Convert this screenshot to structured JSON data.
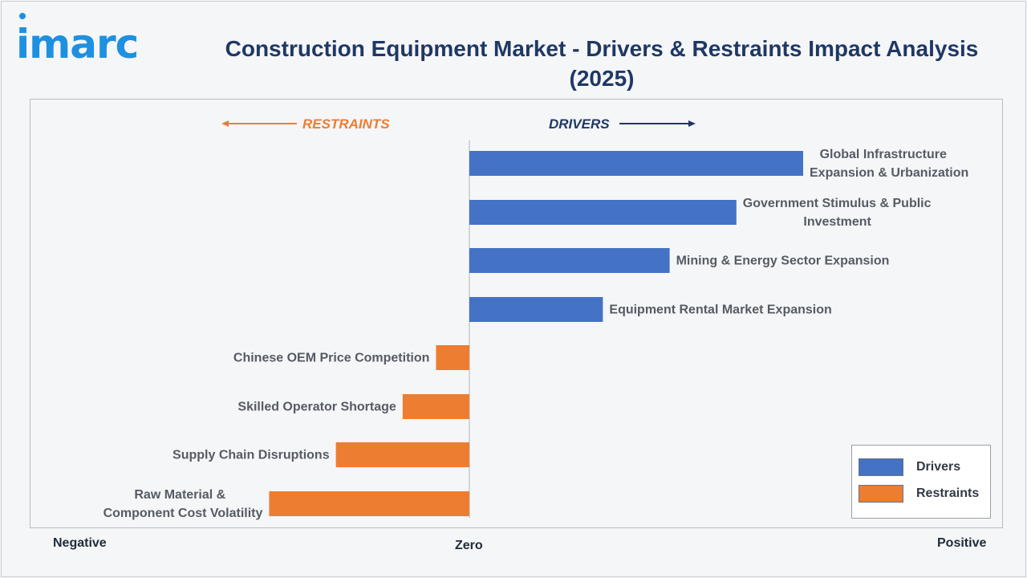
{
  "brand": {
    "logo_text": "imarc"
  },
  "title": "Construction Equipment Market - Drivers & Restraints Impact Analysis (2025)",
  "colors": {
    "drivers": "#4472c4",
    "restraints": "#ed7d31",
    "title": "#1f3864",
    "arrow_drivers": "#1f3864",
    "arrow_restraints": "#ed7d31"
  },
  "chart_data": {
    "type": "bar",
    "orientation": "horizontal",
    "direction_labels": {
      "left": "RESTRAINTS",
      "right": "DRIVERS"
    },
    "x_axis": {
      "negative_label": "Negative",
      "zero_label": "Zero",
      "positive_label": "Positive"
    },
    "xlim": [
      -6,
      10
    ],
    "grid": false,
    "legend_position": "bottom-right",
    "series": [
      {
        "name": "Drivers",
        "categories": [
          "Global Infrastructure Expansion & Urbanization",
          "Government Stimulus & Public Investment",
          "Mining & Energy Sector Expansion",
          "Equipment Rental Market Expansion"
        ],
        "category_lines": [
          [
            "Global Infrastructure",
            "Expansion & Urbanization"
          ],
          [
            "Government Stimulus & Public",
            "Investment"
          ],
          [
            "Mining & Energy Sector Expansion"
          ],
          [
            "Equipment Rental Market Expansion"
          ]
        ],
        "values": [
          10,
          8,
          6,
          4
        ]
      },
      {
        "name": "Restraints",
        "categories": [
          "Chinese OEM Price Competition",
          "Skilled Operator Shortage",
          "Supply Chain Disruptions",
          "Raw Material & Component Cost Volatility"
        ],
        "category_lines": [
          [
            "Chinese OEM Price Competition"
          ],
          [
            "Skilled Operator Shortage"
          ],
          [
            "Supply Chain Disruptions"
          ],
          [
            "Raw Material &",
            "Component Cost Volatility"
          ]
        ],
        "values": [
          -1,
          -2,
          -4,
          -6
        ]
      }
    ]
  },
  "legend": {
    "items": [
      {
        "label": "Drivers"
      },
      {
        "label": "Restraints"
      }
    ]
  }
}
